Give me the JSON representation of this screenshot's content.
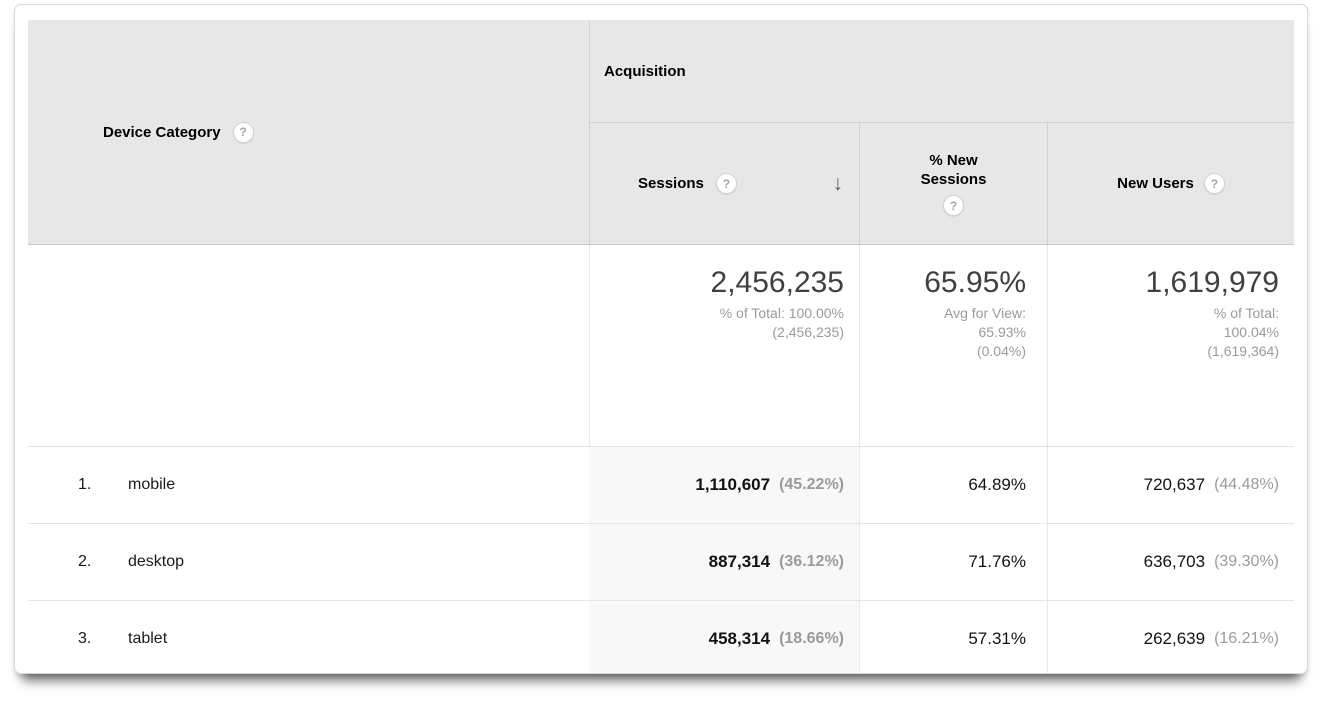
{
  "colors": {
    "header_bg": "#e7e7e7",
    "sorted_column_bg": "#f8f8f8",
    "header_border": "#c9c9c9",
    "row_border": "#e5e5e5",
    "text_primary": "#121212",
    "text_secondary": "#9b9b9b",
    "big_number": "#404040"
  },
  "header": {
    "dimension_label": "Device Category",
    "group_label": "Acquisition",
    "columns": [
      {
        "label": "Sessions",
        "sorted": "descending"
      },
      {
        "label": "% New Sessions"
      },
      {
        "label": "New Users"
      }
    ],
    "help_glyph": "?",
    "sort_desc_glyph": "↓"
  },
  "summary": {
    "sessions": {
      "value": "2,456,235",
      "line1": "% of Total: 100.00%",
      "line2": "(2,456,235)"
    },
    "percent_new_sessions": {
      "value": "65.95%",
      "line1": "Avg for View:",
      "line2": "65.93%",
      "line3": "(0.04%)"
    },
    "new_users": {
      "value": "1,619,979",
      "line1": "% of Total:",
      "line2": "100.04%",
      "line3": "(1,619,364)"
    }
  },
  "rows": [
    {
      "index": "1.",
      "device": "mobile",
      "sessions": "1,110,607",
      "sessions_share": "(45.22%)",
      "percent_new_sessions": "64.89%",
      "new_users": "720,637",
      "new_users_share": "(44.48%)"
    },
    {
      "index": "2.",
      "device": "desktop",
      "sessions": "887,314",
      "sessions_share": "(36.12%)",
      "percent_new_sessions": "71.76%",
      "new_users": "636,703",
      "new_users_share": "(39.30%)"
    },
    {
      "index": "3.",
      "device": "tablet",
      "sessions": "458,314",
      "sessions_share": "(18.66%)",
      "percent_new_sessions": "57.31%",
      "new_users": "262,639",
      "new_users_share": "(16.21%)"
    }
  ]
}
